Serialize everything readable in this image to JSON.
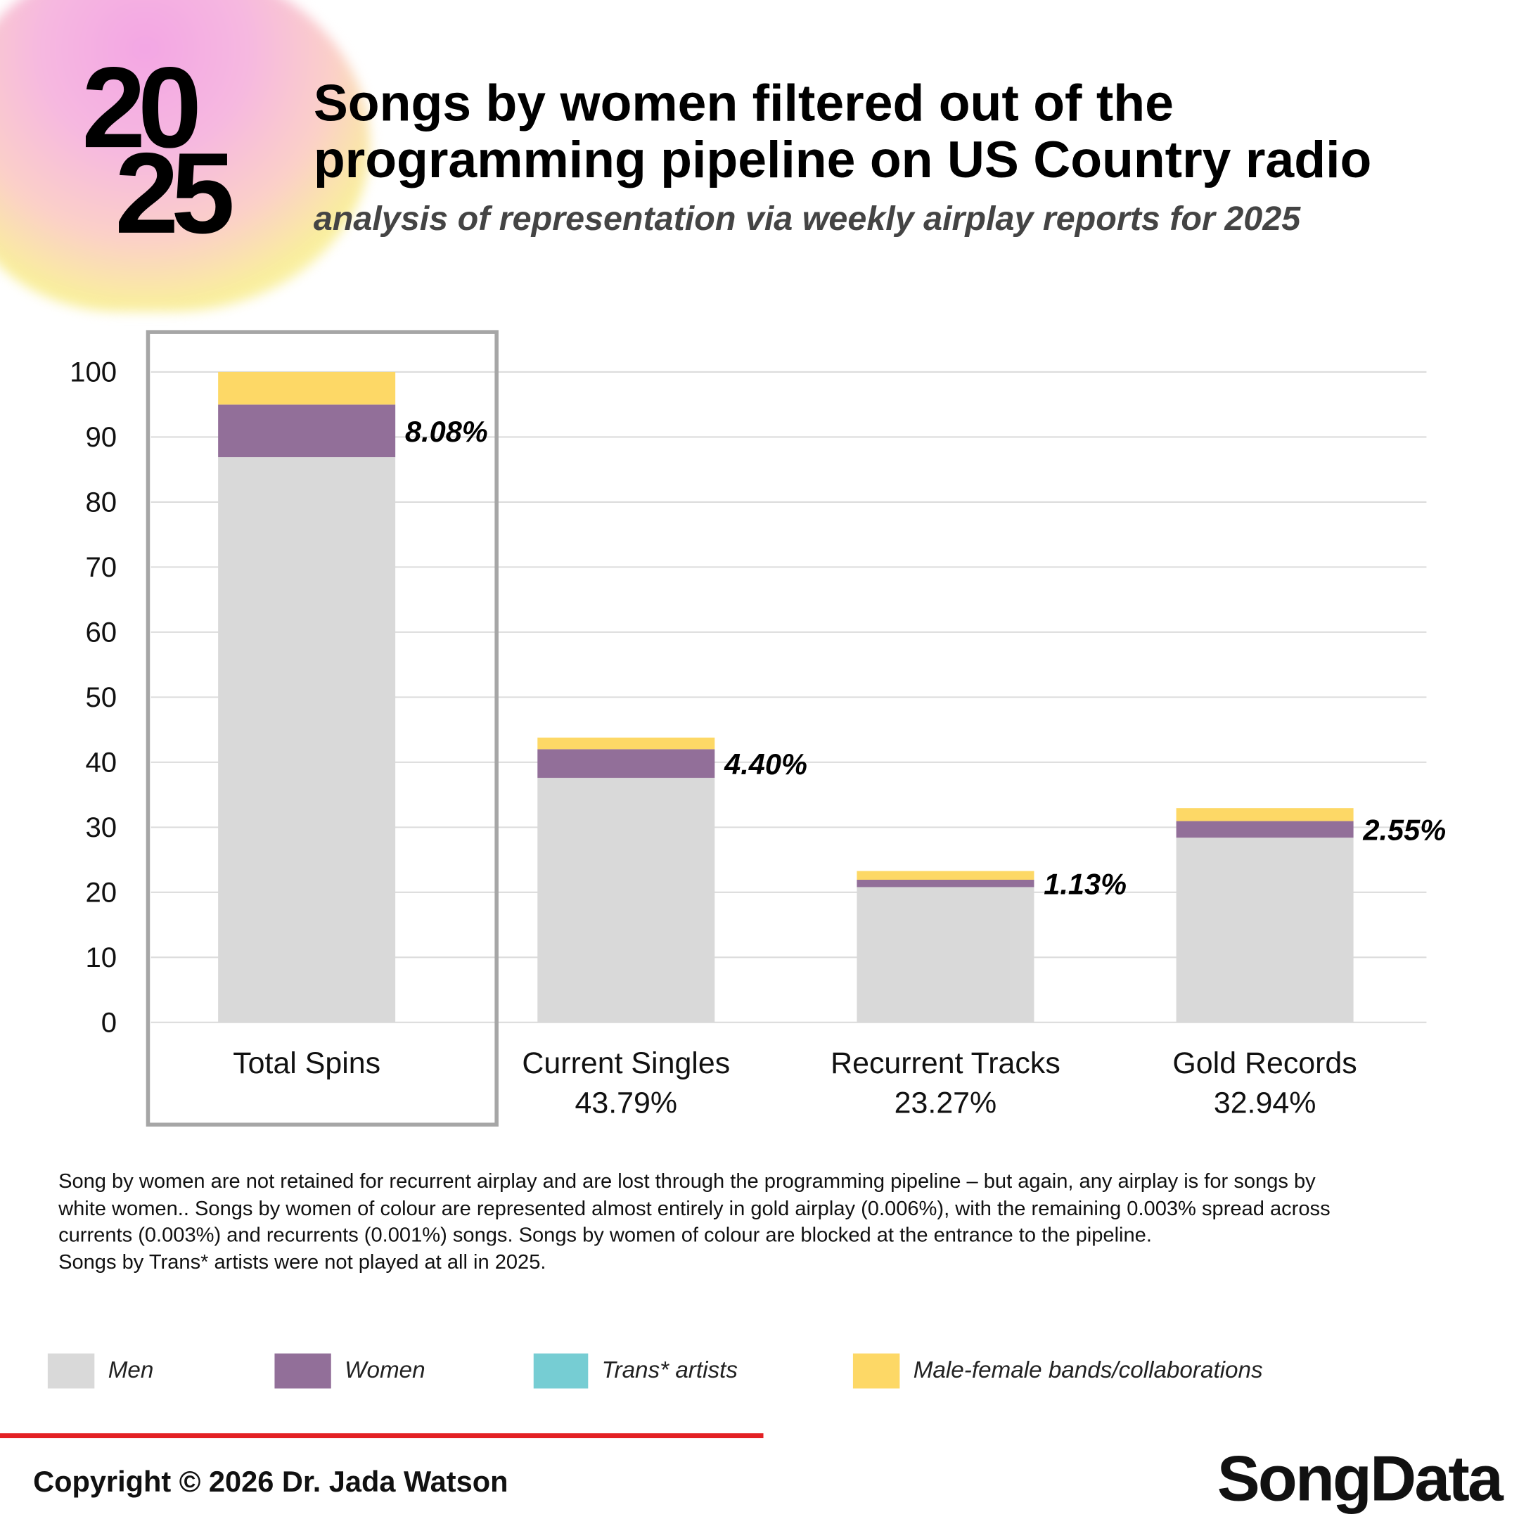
{
  "header": {
    "year_top": "20",
    "year_bottom": "25",
    "title_line1": "Songs by women filtered out of the",
    "title_line2": "programming pipeline on US Country radio",
    "subtitle": "analysis of representation via weekly airplay reports for 2025"
  },
  "chart_data": {
    "type": "bar",
    "stacked": true,
    "categories": [
      "Total Spins",
      "Current Singles",
      "Recurrent Tracks",
      "Gold Records"
    ],
    "category_sublabels": [
      "",
      "43.79%",
      "23.27%",
      "32.94%"
    ],
    "women_labels": [
      "8.08%",
      "4.40%",
      "1.13%",
      "2.55%"
    ],
    "series": [
      {
        "name": "Men",
        "color": "#d9d9d9",
        "values": [
          86.9,
          37.6,
          20.8,
          28.4
        ]
      },
      {
        "name": "Women",
        "color": "#926f99",
        "values": [
          8.08,
          4.4,
          1.13,
          2.55
        ]
      },
      {
        "name": "Trans* artists",
        "color": "#76cdd3",
        "values": [
          0,
          0,
          0,
          0
        ]
      },
      {
        "name": "Male-female bands/collaborations",
        "color": "#fdd866",
        "values": [
          5.02,
          1.79,
          1.34,
          1.99
        ]
      }
    ],
    "ylim": [
      0,
      100
    ],
    "yticks": [
      0,
      10,
      20,
      30,
      40,
      50,
      60,
      70,
      80,
      90,
      100
    ],
    "grid": true,
    "highlighted_category": "Total Spins",
    "legend_placement": "bottom"
  },
  "note": {
    "lines": [
      "Song by women are not retained for recurrent airplay and are lost through the programming pipeline – but again, any airplay is for songs by white women.. Songs by women of colour are represented almost entirely in gold airplay (0.006%), with the remaining 0.003% spread across currents (0.003%) and recurrents (0.001%) songs. Songs by women of colour are blocked at the entrance to the pipeline.",
      "Songs by Trans* artists were not played at all in 2025."
    ]
  },
  "legend": [
    {
      "label": "Men",
      "color": "#d9d9d9"
    },
    {
      "label": "Women",
      "color": "#926f99"
    },
    {
      "label": "Trans* artists",
      "color": "#76cdd3"
    },
    {
      "label": "Male-female bands/collaborations",
      "color": "#fdd866"
    }
  ],
  "footer": {
    "copyright": "Copyright © 2026 Dr. Jada Watson",
    "logo": "SongData",
    "accent": "#e32024"
  }
}
